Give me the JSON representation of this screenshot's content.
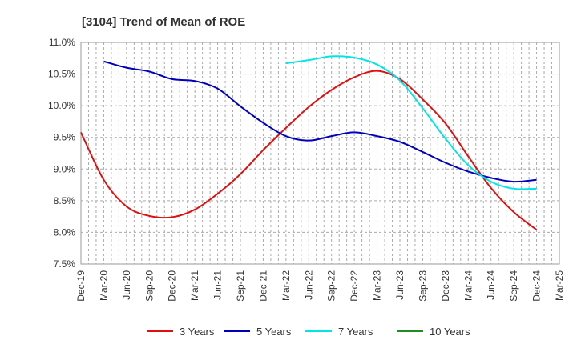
{
  "chart_data": {
    "type": "line",
    "title": "[3104]  Trend of Mean of ROE",
    "xlabel": "",
    "ylabel": "",
    "x_ticks": [
      "Dec-19",
      "Mar-20",
      "Jun-20",
      "Sep-20",
      "Dec-20",
      "Mar-21",
      "Jun-21",
      "Sep-21",
      "Dec-21",
      "Mar-22",
      "Jun-22",
      "Sep-22",
      "Dec-22",
      "Mar-23",
      "Jun-23",
      "Sep-23",
      "Dec-23",
      "Mar-24",
      "Jun-24",
      "Sep-24",
      "Dec-24",
      "Mar-25"
    ],
    "y_ticks": [
      "11.0%",
      "10.5%",
      "10.0%",
      "9.5%",
      "9.0%",
      "8.5%",
      "8.0%",
      "7.5%"
    ],
    "ylim": [
      7.5,
      11.0
    ],
    "grid": true,
    "legend_position": "bottom",
    "series": [
      {
        "name": "3 Years",
        "color": "#dd1111",
        "start_index": 0,
        "values": [
          9.58,
          8.83,
          8.41,
          8.26,
          8.24,
          8.36,
          8.61,
          8.92,
          9.3,
          9.65,
          9.98,
          10.25,
          10.45,
          10.55,
          10.42,
          10.1,
          9.72,
          9.2,
          8.7,
          8.32,
          8.04
        ]
      },
      {
        "name": "5 Years",
        "color": "#0000bb",
        "start_index": 1,
        "values": [
          10.7,
          10.6,
          10.54,
          10.42,
          10.39,
          10.27,
          9.99,
          9.73,
          9.52,
          9.45,
          9.52,
          9.58,
          9.52,
          9.43,
          9.27,
          9.1,
          8.96,
          8.86,
          8.8,
          8.83
        ]
      },
      {
        "name": "7 Years",
        "color": "#00e5e5",
        "start_index": 9,
        "values": [
          10.67,
          10.72,
          10.78,
          10.76,
          10.65,
          10.4,
          9.96,
          9.48,
          9.06,
          8.8,
          8.69,
          8.69
        ]
      },
      {
        "name": "10 Years",
        "color": "#228b22",
        "start_index": 0,
        "values": []
      }
    ]
  }
}
